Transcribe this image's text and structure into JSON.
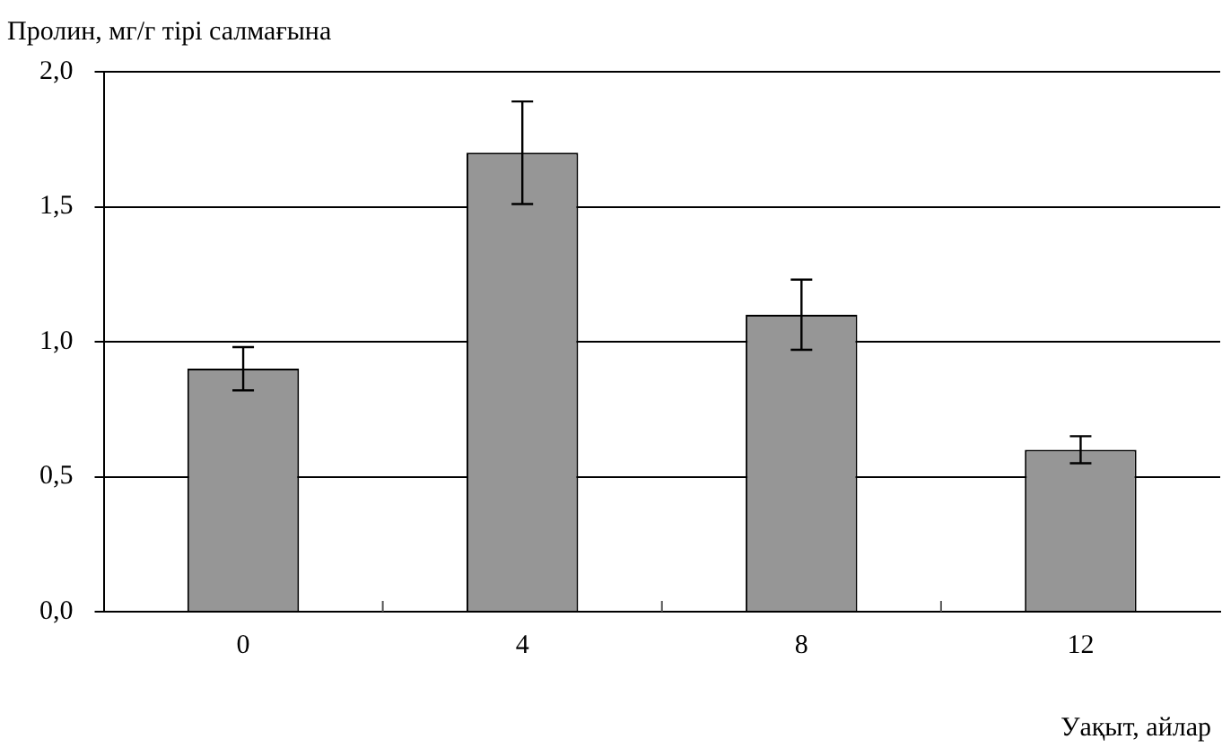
{
  "chart_data": {
    "type": "bar",
    "ylabel": "Пролин, мг/г тірі салмағына",
    "xlabel": "Уақыт, айлар",
    "categories": [
      "0",
      "4",
      "8",
      "12"
    ],
    "values": [
      0.9,
      1.7,
      1.1,
      0.6
    ],
    "errors": [
      0.08,
      0.19,
      0.13,
      0.05
    ],
    "color": "#969696",
    "ylim": [
      0,
      2
    ],
    "yticks": [
      {
        "value": 0,
        "label": "0,0"
      },
      {
        "value": 0.5,
        "label": "0,5"
      },
      {
        "value": 1,
        "label": "1,0"
      },
      {
        "value": 1.5,
        "label": "1,5"
      },
      {
        "value": 2,
        "label": "2,0"
      }
    ],
    "grid": "y"
  }
}
